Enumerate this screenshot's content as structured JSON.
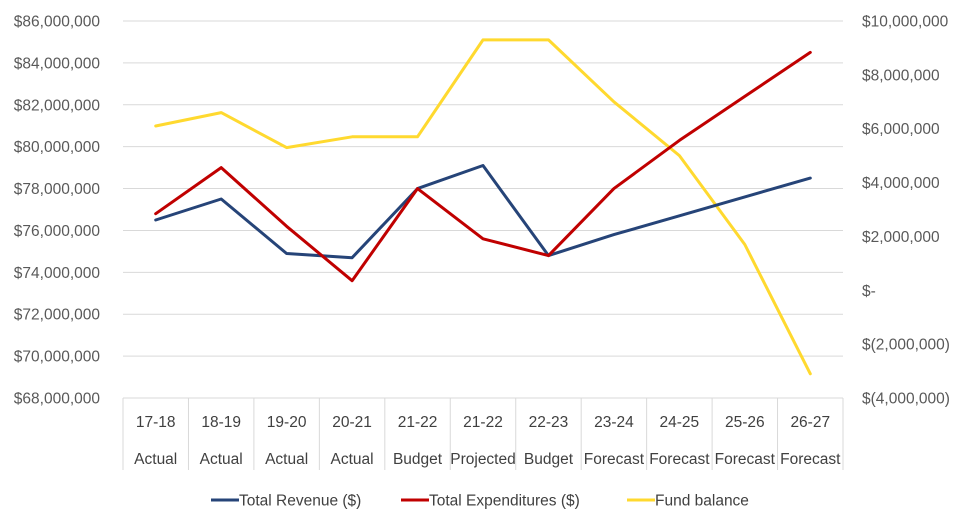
{
  "chart_data": {
    "type": "line",
    "title": "",
    "categories": [
      {
        "year": "17-18",
        "status": "Actual"
      },
      {
        "year": "18-19",
        "status": "Actual"
      },
      {
        "year": "19-20",
        "status": "Actual"
      },
      {
        "year": "20-21",
        "status": "Actual"
      },
      {
        "year": "21-22",
        "status": "Budget"
      },
      {
        "year": "21-22",
        "status": "Projected"
      },
      {
        "year": "22-23",
        "status": "Budget"
      },
      {
        "year": "23-24",
        "status": "Forecast"
      },
      {
        "year": "24-25",
        "status": "Forecast"
      },
      {
        "year": "25-26",
        "status": "Forecast"
      },
      {
        "year": "26-27",
        "status": "Forecast"
      }
    ],
    "primary_axis": {
      "ylim": [
        68000000,
        86000000
      ],
      "ticks": [
        68000000,
        70000000,
        72000000,
        74000000,
        76000000,
        78000000,
        80000000,
        82000000,
        84000000,
        86000000
      ],
      "tick_labels": [
        "$68,000,000",
        "$70,000,000",
        "$72,000,000",
        "$74,000,000",
        "$76,000,000",
        "$78,000,000",
        "$80,000,000",
        "$82,000,000",
        "$84,000,000",
        "$86,000,000"
      ],
      "grid": true
    },
    "secondary_axis": {
      "ylim": [
        -4000000,
        10000000
      ],
      "ticks": [
        -4000000,
        -2000000,
        0,
        2000000,
        4000000,
        6000000,
        8000000,
        10000000
      ],
      "tick_labels": [
        "$(4,000,000)",
        "$(2,000,000)",
        "$-",
        "$2,000,000",
        "$4,000,000",
        "$6,000,000",
        "$8,000,000",
        "$10,000,000"
      ]
    },
    "series": [
      {
        "name": "Total Revenue ($)",
        "axis": "primary",
        "color": "#264478",
        "values": [
          76500000,
          77500000,
          74900000,
          74700000,
          78000000,
          79100000,
          74800000,
          75800000,
          76700000,
          77600000,
          78500000
        ]
      },
      {
        "name": "Total Expenditures ($)",
        "axis": "primary",
        "color": "#c00000",
        "values": [
          76800000,
          79000000,
          76200000,
          73600000,
          78000000,
          75600000,
          74800000,
          78000000,
          80300000,
          82400000,
          84500000
        ]
      },
      {
        "name": "Fund balance",
        "axis": "secondary",
        "color": "#ffd92f",
        "values": [
          6100000,
          6600000,
          5300000,
          5700000,
          5700000,
          9300000,
          9300000,
          7000000,
          5000000,
          1700000,
          -3100000
        ]
      }
    ],
    "legend_position": "bottom"
  }
}
